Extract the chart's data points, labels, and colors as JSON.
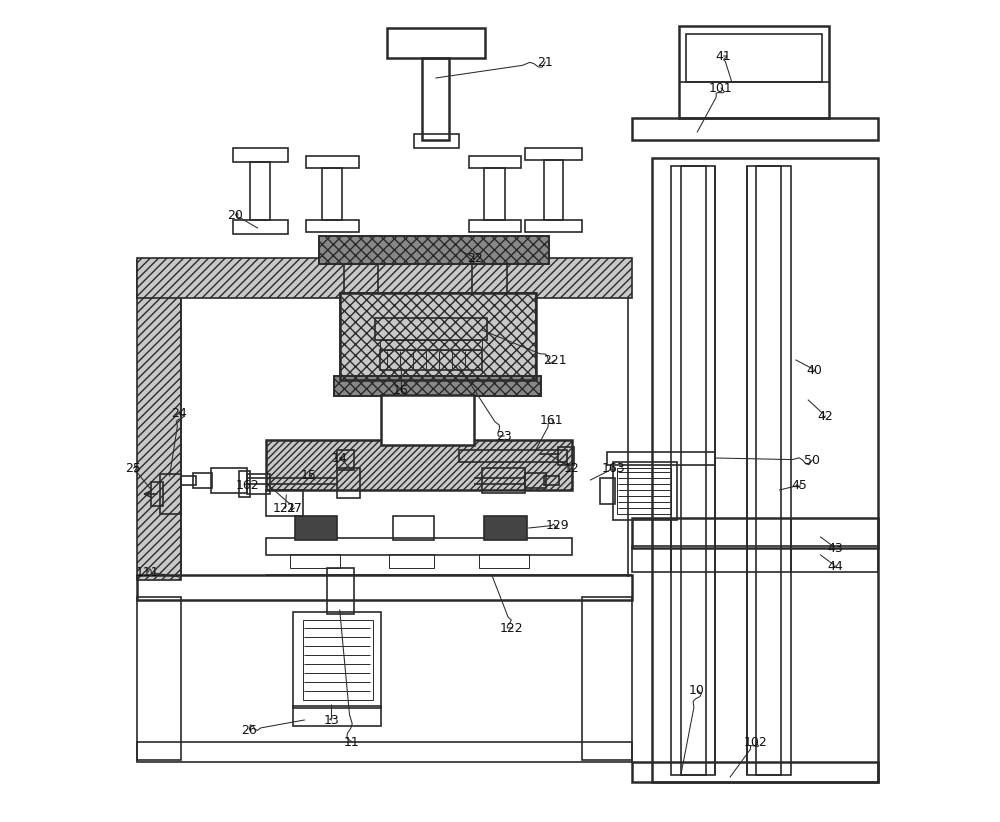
{
  "bg": "#ffffff",
  "lc": "#2a2a2a",
  "lw": 1.2,
  "lw_thick": 1.8,
  "lw_thin": 0.7,
  "hatch_fc": "#c8c8c8",
  "hatch_dark": "#888888",
  "fs_label": 9
}
